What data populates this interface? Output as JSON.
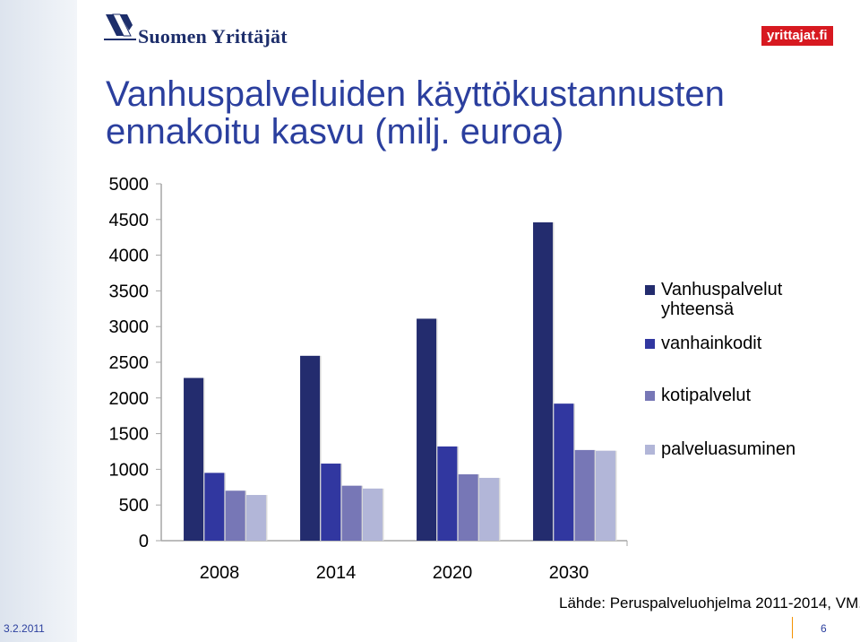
{
  "header": {
    "logo_text": "Suomen Yrittäjät",
    "badge_text": "yrittajat.fi"
  },
  "slide": {
    "title_line1": "Vanhuspalveluiden  käyttökustannusten",
    "title_line2": "ennakoitu kasvu (milj. euroa)",
    "source": "Lähde:  Peruspalveluohjelma 2011-2014, VM.",
    "date": "3.2.2011",
    "page_number": "6"
  },
  "chart_data": {
    "type": "bar",
    "title": "Vanhuspalveluiden  käyttökustannusten ennakoitu kasvu (milj. euroa)",
    "xlabel": "",
    "ylabel": "",
    "ylim": [
      0,
      5000
    ],
    "yticks": [
      "5000",
      "4500",
      "4000",
      "3500",
      "3000",
      "2500",
      "2000",
      "1500",
      "1000",
      "500",
      "0"
    ],
    "categories": [
      "2008",
      "2014",
      "2020",
      "2030"
    ],
    "grid": false,
    "legend_position": "right",
    "series": [
      {
        "name": "Vanhuspalvelut yhteensä",
        "color": "#232c6e",
        "values": [
          2280,
          2590,
          3110,
          4460
        ]
      },
      {
        "name": "vanhainkodit",
        "color": "#3137a0",
        "values": [
          950,
          1080,
          1320,
          1920
        ]
      },
      {
        "name": "kotipalvelut",
        "color": "#7777b6",
        "values": [
          700,
          770,
          930,
          1270
        ]
      },
      {
        "name": "palveluasuminen",
        "color": "#b2b6d8",
        "values": [
          640,
          730,
          880,
          1260
        ]
      }
    ]
  }
}
